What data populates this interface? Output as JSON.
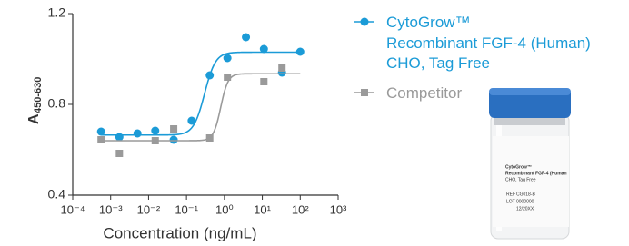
{
  "chart_data": {
    "type": "scatter",
    "x_label": "Concentration (ng/mL)",
    "y_label": "A",
    "y_label_sub": "450-630",
    "log_x": true,
    "xlim": [
      0.0001,
      1000
    ],
    "xticks": [
      {
        "value": 0.0001,
        "label": "10⁻⁴"
      },
      {
        "value": 0.001,
        "label": "10⁻³"
      },
      {
        "value": 0.01,
        "label": "10⁻²"
      },
      {
        "value": 0.1,
        "label": "10⁻¹"
      },
      {
        "value": 1,
        "label": "10⁰"
      },
      {
        "value": 10,
        "label": "10¹"
      },
      {
        "value": 100,
        "label": "10²"
      },
      {
        "value": 1000,
        "label": "10³"
      }
    ],
    "ylim": [
      0.4,
      1.2
    ],
    "yticks": [
      0.4,
      0.8,
      1.2
    ],
    "x": [
      0.00056,
      0.0017,
      0.0051,
      0.015,
      0.046,
      0.137,
      0.41,
      1.2,
      3.7,
      11,
      33,
      100
    ],
    "series": [
      {
        "name": "CytoGrow™\nRecombinant FGF-4 (Human)\nCHO, Tag Free",
        "color": "#1b9bd7",
        "marker": "circle",
        "values": [
          0.68,
          0.656,
          0.672,
          0.684,
          0.644,
          0.728,
          0.928,
          1.004,
          1.096,
          1.044,
          0.94,
          1.032
        ],
        "fit": {
          "bottom": 0.665,
          "top": 1.03,
          "ec50": 0.3,
          "hill": 3
        }
      },
      {
        "name": "Competitor",
        "color": "#9a9a9a",
        "marker": "square",
        "values": [
          0.644,
          0.584,
          null,
          0.64,
          0.692,
          null,
          0.652,
          0.92,
          null,
          0.9,
          0.96,
          null
        ],
        "fit": {
          "bottom": 0.64,
          "top": 0.935,
          "ec50": 0.8,
          "hill": 4.5
        }
      }
    ]
  },
  "vial": {
    "brand": "CytoGrow™",
    "product": "Recombinant FGF-4 (Human",
    "variant": "CHO, Tag Free",
    "ref_label": "REF",
    "ref": "CG018-B",
    "lot_label": "LOT",
    "lot": "0000000",
    "date": "12/20XX"
  }
}
